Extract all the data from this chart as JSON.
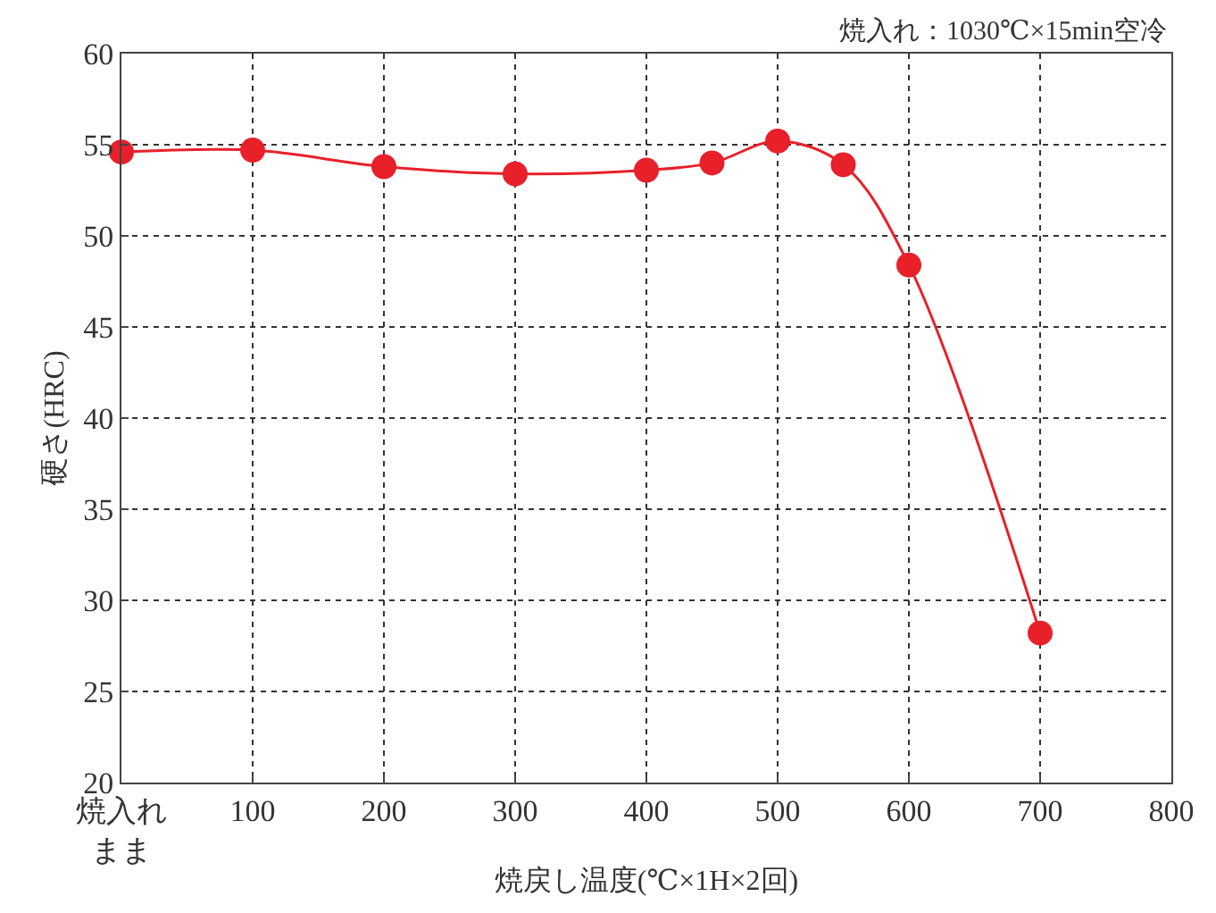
{
  "chart_data": {
    "type": "line",
    "xlabel": "焼戻し温度(℃×1H×2回)",
    "ylabel": "硬さ(HRC)",
    "annotations": [
      "焼入れ：1030℃×15min空冷"
    ],
    "x": [
      0,
      100,
      200,
      300,
      400,
      450,
      500,
      550,
      600,
      700
    ],
    "series": [
      {
        "color": "#e8202a",
        "values": [
          54.6,
          54.7,
          53.8,
          53.4,
          53.6,
          54.0,
          55.2,
          53.9,
          48.4,
          28.2
        ]
      }
    ],
    "xlim": [
      0,
      800
    ],
    "ylim": [
      20,
      60
    ],
    "xticks": [
      {
        "value": 0,
        "label": "焼入れまま"
      },
      100,
      200,
      300,
      400,
      500,
      600,
      700,
      800
    ],
    "yticks": [
      20,
      25,
      30,
      35,
      40,
      45,
      50,
      55,
      60
    ],
    "grid": true,
    "legend": false,
    "marker": "circle",
    "line_style": "solid"
  }
}
